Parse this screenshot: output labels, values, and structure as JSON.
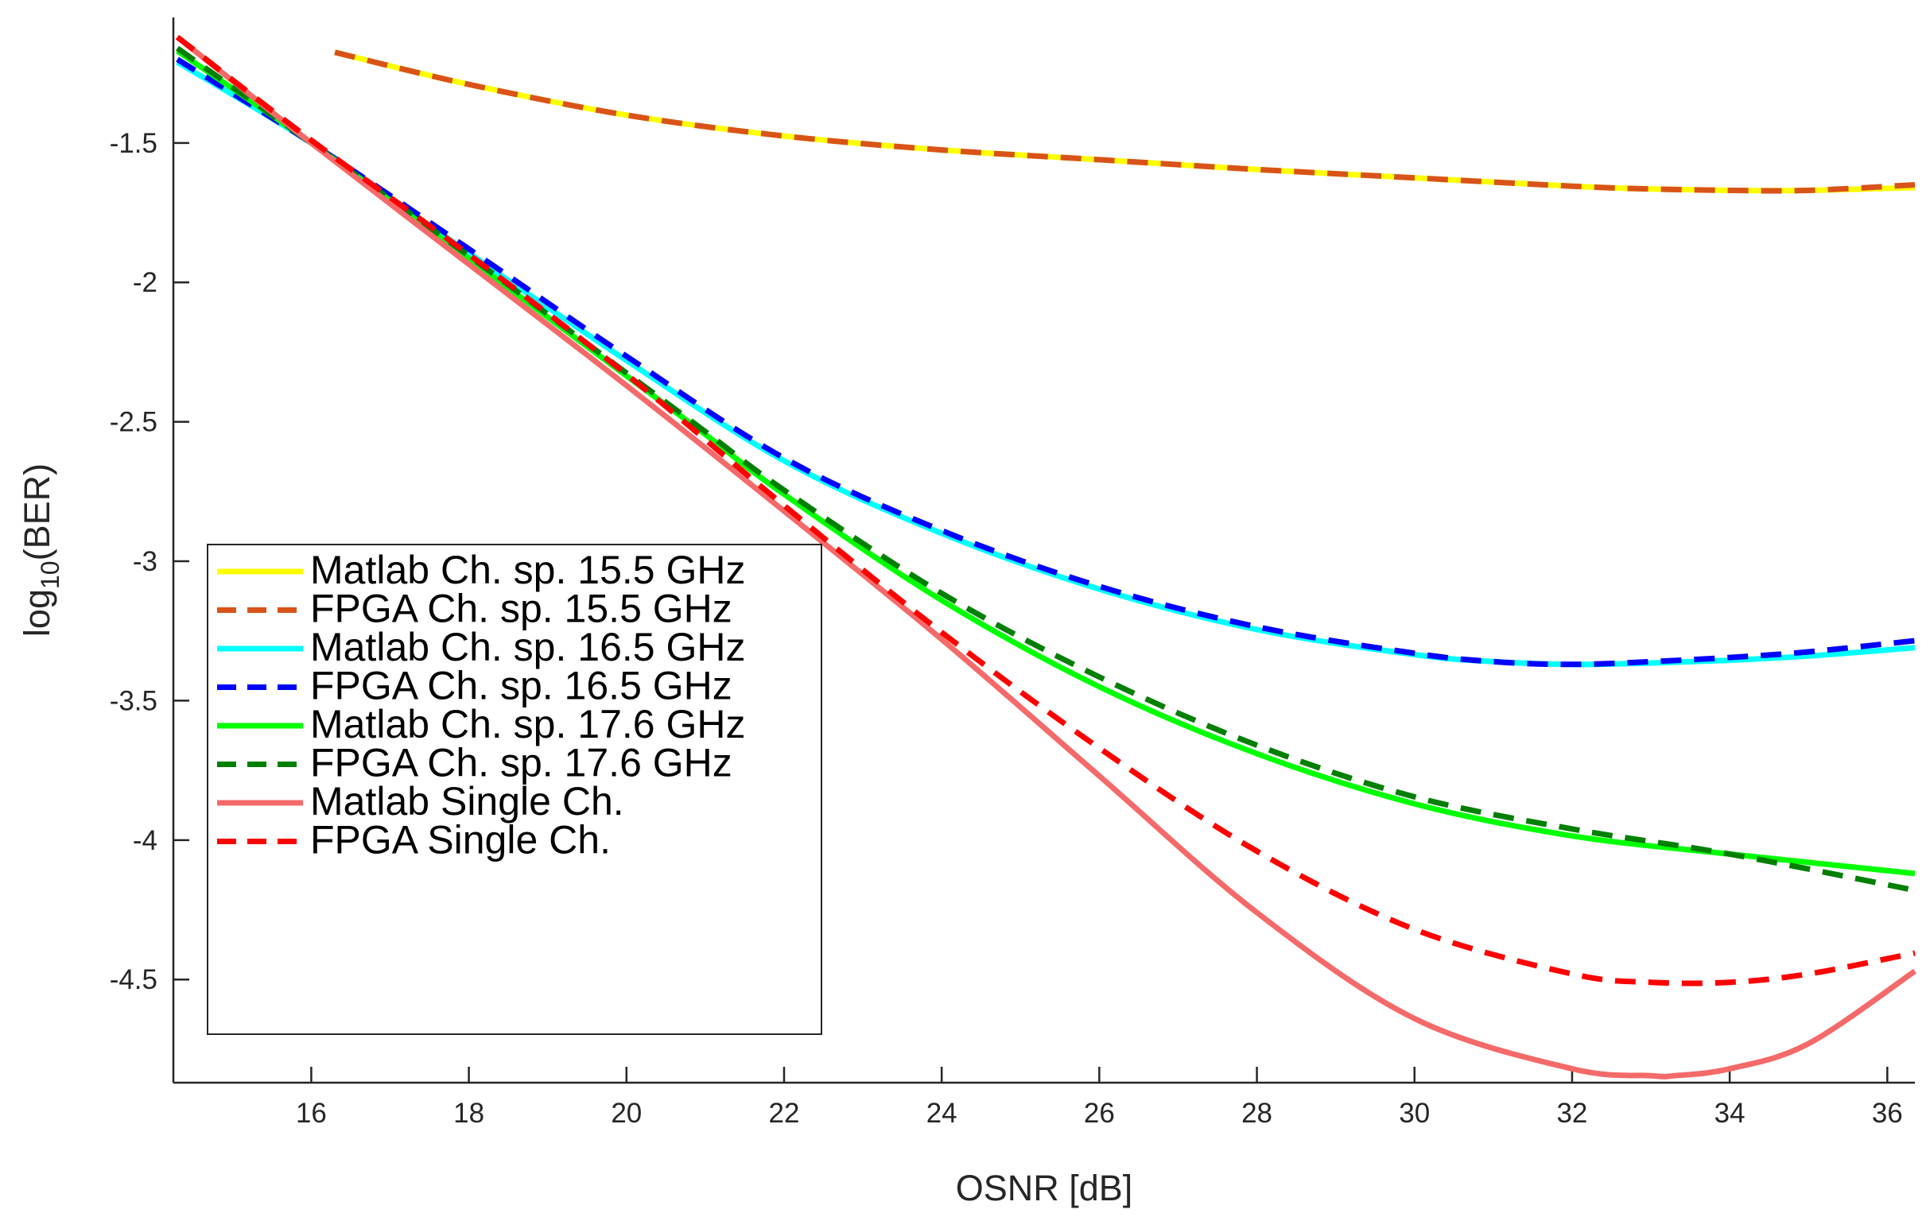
{
  "chart_data": {
    "type": "line",
    "title": "",
    "xlabel": "OSNR [dB]",
    "ylabel_main": "log",
    "ylabel_sub": "10",
    "ylabel_tail": "(BER)",
    "xlim": [
      14.25,
      36.35
    ],
    "ylim": [
      -4.87,
      -1.05
    ],
    "xticks": [
      16,
      18,
      20,
      22,
      24,
      26,
      28,
      30,
      32,
      34,
      36
    ],
    "yticks": [
      -4.5,
      -4,
      -3.5,
      -3,
      -2.5,
      -2,
      -1.5
    ],
    "xtick_labels": [
      "16",
      "18",
      "20",
      "22",
      "24",
      "26",
      "28",
      "30",
      "32",
      "34",
      "36"
    ],
    "ytick_labels": [
      "-4.5",
      "-4",
      "-3.5",
      "-3",
      "-2.5",
      "-2",
      "-1.5"
    ],
    "grid": false,
    "legend_position": "lower-left",
    "series": [
      {
        "name": "Matlab Ch. sp. 15.5 GHz",
        "color": "#FFFF00",
        "dashed": false,
        "x": [
          16.3,
          18,
          20,
          22,
          24,
          26,
          28,
          30,
          32,
          33,
          34,
          35,
          36.35
        ],
        "y": [
          -1.175,
          -1.29,
          -1.4,
          -1.475,
          -1.525,
          -1.56,
          -1.595,
          -1.625,
          -1.655,
          -1.665,
          -1.67,
          -1.67,
          -1.66
        ]
      },
      {
        "name": "FPGA Ch. sp. 15.5 GHz",
        "color": "#D95319",
        "dashed": true,
        "x": [
          16.3,
          18,
          20,
          22,
          24,
          26,
          28,
          30,
          32,
          33,
          34,
          35,
          36.35
        ],
        "y": [
          -1.175,
          -1.29,
          -1.4,
          -1.475,
          -1.525,
          -1.56,
          -1.595,
          -1.625,
          -1.655,
          -1.665,
          -1.67,
          -1.67,
          -1.65
        ]
      },
      {
        "name": "Matlab Ch. sp. 16.5 GHz",
        "color": "#00FFFF",
        "dashed": false,
        "x": [
          14.3,
          16,
          18,
          20,
          22,
          24,
          26,
          28,
          30,
          31,
          32,
          33,
          34,
          35,
          36.35
        ],
        "y": [
          -1.21,
          -1.5,
          -1.895,
          -2.28,
          -2.64,
          -2.9,
          -3.1,
          -3.245,
          -3.335,
          -3.36,
          -3.37,
          -3.365,
          -3.355,
          -3.34,
          -3.31
        ]
      },
      {
        "name": "FPGA Ch. sp. 16.5 GHz",
        "color": "#0000FF",
        "dashed": true,
        "x": [
          14.3,
          16,
          18,
          20,
          22,
          24,
          26,
          28,
          30,
          31,
          32,
          33,
          34,
          35,
          36.35
        ],
        "y": [
          -1.2,
          -1.5,
          -1.88,
          -2.265,
          -2.63,
          -2.89,
          -3.09,
          -3.235,
          -3.33,
          -3.36,
          -3.37,
          -3.36,
          -3.345,
          -3.325,
          -3.285
        ]
      },
      {
        "name": "Matlab Ch. sp. 17.6 GHz",
        "color": "#00FF00",
        "dashed": false,
        "x": [
          14.3,
          16,
          18,
          20,
          21,
          22,
          24,
          26,
          28,
          30,
          32,
          34,
          36.35
        ],
        "y": [
          -1.17,
          -1.5,
          -1.915,
          -2.335,
          -2.545,
          -2.76,
          -3.14,
          -3.45,
          -3.69,
          -3.87,
          -3.985,
          -4.05,
          -4.12
        ]
      },
      {
        "name": "FPGA Ch. sp. 17.6 GHz",
        "color": "#007F00",
        "dashed": true,
        "x": [
          14.3,
          16,
          18,
          20,
          21,
          22,
          24,
          26,
          28,
          30,
          32,
          34,
          36.35
        ],
        "y": [
          -1.16,
          -1.5,
          -1.905,
          -2.325,
          -2.535,
          -2.745,
          -3.115,
          -3.415,
          -3.66,
          -3.845,
          -3.96,
          -4.05,
          -4.18
        ]
      },
      {
        "name": "Matlab Single Ch.",
        "color": "#F46A6A",
        "dashed": false,
        "x": [
          14.3,
          16,
          18,
          20,
          22,
          24,
          26,
          28,
          30,
          32,
          33,
          33.3,
          34,
          35,
          36.35
        ],
        "y": [
          -1.12,
          -1.5,
          -1.935,
          -2.37,
          -2.82,
          -3.28,
          -3.77,
          -4.26,
          -4.64,
          -4.82,
          -4.845,
          -4.845,
          -4.82,
          -4.73,
          -4.47
        ]
      },
      {
        "name": "FPGA Single Ch.",
        "color": "#FF0000",
        "dashed": true,
        "x": [
          14.3,
          16,
          18,
          20,
          22,
          24,
          26,
          28,
          30,
          32,
          33,
          34,
          35,
          36.35
        ],
        "y": [
          -1.12,
          -1.49,
          -1.9,
          -2.33,
          -2.8,
          -3.255,
          -3.67,
          -4.04,
          -4.32,
          -4.48,
          -4.51,
          -4.51,
          -4.48,
          -4.405
        ]
      }
    ]
  }
}
